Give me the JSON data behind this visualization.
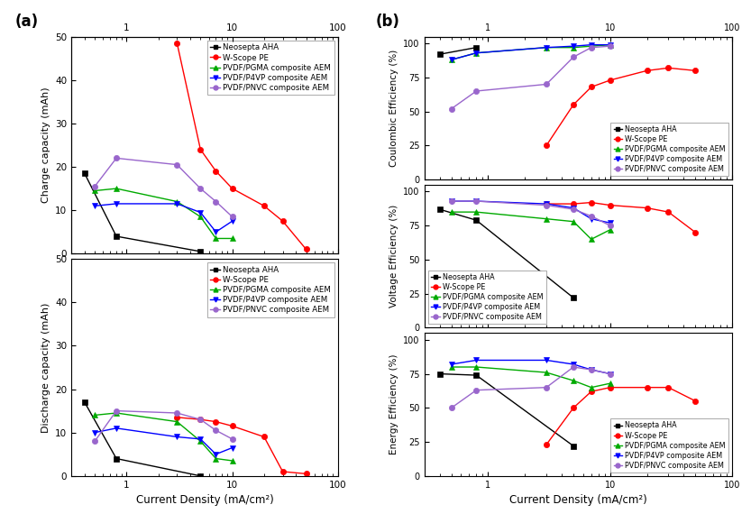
{
  "series_names": [
    "Neosepta AHA",
    "W-Scope PE",
    "PVDF/PGMA composite AEM",
    "PVDF/P4VP composite AEM",
    "PVDF/PNVC composite AEM"
  ],
  "charge_x": {
    "Neosepta AHA": [
      0.4,
      0.8,
      5.0
    ],
    "W-Scope PE": [
      3.0,
      5.0,
      7.0,
      10.0,
      20.0,
      30.0,
      50.0
    ],
    "PVDF/PGMA composite AEM": [
      0.5,
      0.8,
      3.0,
      5.0,
      7.0,
      10.0
    ],
    "PVDF/P4VP composite AEM": [
      0.5,
      0.8,
      3.0,
      5.0,
      7.0,
      10.0
    ],
    "PVDF/PNVC composite AEM": [
      0.5,
      0.8,
      3.0,
      5.0,
      7.0,
      10.0
    ]
  },
  "charge_y": {
    "Neosepta AHA": [
      18.5,
      4.0,
      0.5
    ],
    "W-Scope PE": [
      48.5,
      24.0,
      19.0,
      15.0,
      11.0,
      7.5,
      1.0
    ],
    "PVDF/PGMA composite AEM": [
      14.5,
      15.0,
      12.0,
      8.5,
      3.5,
      3.5
    ],
    "PVDF/P4VP composite AEM": [
      11.0,
      11.5,
      11.5,
      9.5,
      5.0,
      7.5
    ],
    "PVDF/PNVC composite AEM": [
      15.5,
      22.0,
      20.5,
      15.0,
      12.0,
      8.5
    ]
  },
  "discharge_x": {
    "Neosepta AHA": [
      0.4,
      0.8,
      5.0
    ],
    "W-Scope PE": [
      3.0,
      5.0,
      7.0,
      10.0,
      20.0,
      30.0,
      50.0
    ],
    "PVDF/PGMA composite AEM": [
      0.5,
      0.8,
      3.0,
      5.0,
      7.0,
      10.0
    ],
    "PVDF/P4VP composite AEM": [
      0.5,
      0.8,
      3.0,
      5.0,
      7.0,
      10.0
    ],
    "PVDF/PNVC composite AEM": [
      0.5,
      0.8,
      3.0,
      5.0,
      7.0,
      10.0
    ]
  },
  "discharge_y": {
    "Neosepta AHA": [
      17.0,
      4.0,
      0.0
    ],
    "W-Scope PE": [
      13.5,
      13.0,
      12.5,
      11.5,
      9.0,
      1.0,
      0.5
    ],
    "PVDF/PGMA composite AEM": [
      14.0,
      14.5,
      12.5,
      8.0,
      4.0,
      3.5
    ],
    "PVDF/P4VP composite AEM": [
      10.0,
      11.0,
      9.0,
      8.5,
      5.0,
      6.5
    ],
    "PVDF/PNVC composite AEM": [
      8.0,
      15.0,
      14.5,
      13.0,
      10.5,
      8.5
    ]
  },
  "coulombic_x": {
    "Neosepta AHA": [
      0.4,
      0.8
    ],
    "W-Scope PE": [
      3.0,
      5.0,
      7.0,
      10.0,
      20.0,
      30.0,
      50.0
    ],
    "PVDF/PGMA composite AEM": [
      0.5,
      0.8,
      3.0,
      5.0,
      7.0,
      10.0
    ],
    "PVDF/P4VP composite AEM": [
      0.5,
      0.8,
      3.0,
      5.0,
      7.0,
      10.0
    ],
    "PVDF/PNVC composite AEM": [
      0.5,
      0.8,
      3.0,
      5.0,
      7.0,
      10.0
    ]
  },
  "coulombic_y": {
    "Neosepta AHA": [
      92.0,
      97.0
    ],
    "W-Scope PE": [
      25.0,
      55.0,
      68.0,
      73.0,
      80.0,
      82.0,
      80.0
    ],
    "PVDF/PGMA composite AEM": [
      88.0,
      93.0,
      97.0,
      97.0,
      98.0,
      99.0
    ],
    "PVDF/P4VP composite AEM": [
      88.0,
      93.0,
      97.0,
      98.0,
      99.0,
      99.0
    ],
    "PVDF/PNVC composite AEM": [
      52.0,
      65.0,
      70.0,
      90.0,
      97.0,
      98.0
    ]
  },
  "voltage_x": {
    "Neosepta AHA": [
      0.4,
      0.8,
      5.0
    ],
    "W-Scope PE": [
      3.0,
      5.0,
      7.0,
      10.0,
      20.0,
      30.0,
      50.0
    ],
    "PVDF/PGMA composite AEM": [
      0.5,
      0.8,
      3.0,
      5.0,
      7.0,
      10.0
    ],
    "PVDF/P4VP composite AEM": [
      0.5,
      0.8,
      3.0,
      5.0,
      7.0,
      10.0
    ],
    "PVDF/PNVC composite AEM": [
      0.5,
      0.8,
      3.0,
      5.0,
      7.0,
      10.0
    ]
  },
  "voltage_y": {
    "Neosepta AHA": [
      87.0,
      79.0,
      22.0
    ],
    "W-Scope PE": [
      91.0,
      91.0,
      92.0,
      90.0,
      88.0,
      85.0,
      70.0
    ],
    "PVDF/PGMA composite AEM": [
      85.0,
      85.0,
      80.0,
      78.0,
      65.0,
      72.0
    ],
    "PVDF/P4VP composite AEM": [
      93.0,
      93.0,
      91.0,
      88.0,
      80.0,
      77.0
    ],
    "PVDF/PNVC composite AEM": [
      93.0,
      93.0,
      90.0,
      87.0,
      82.0,
      75.0
    ]
  },
  "energy_x": {
    "Neosepta AHA": [
      0.4,
      0.8,
      5.0
    ],
    "W-Scope PE": [
      3.0,
      5.0,
      7.0,
      10.0,
      20.0,
      30.0,
      50.0
    ],
    "PVDF/PGMA composite AEM": [
      0.5,
      0.8,
      3.0,
      5.0,
      7.0,
      10.0
    ],
    "PVDF/P4VP composite AEM": [
      0.5,
      0.8,
      3.0,
      5.0,
      7.0,
      10.0
    ],
    "PVDF/PNVC composite AEM": [
      0.5,
      0.8,
      3.0,
      5.0,
      7.0,
      10.0
    ]
  },
  "energy_y": {
    "Neosepta AHA": [
      75.0,
      74.0,
      22.0
    ],
    "W-Scope PE": [
      23.0,
      50.0,
      62.0,
      65.0,
      65.0,
      65.0,
      55.0
    ],
    "PVDF/PGMA composite AEM": [
      80.0,
      80.0,
      76.0,
      70.0,
      65.0,
      68.0
    ],
    "PVDF/P4VP composite AEM": [
      82.0,
      85.0,
      85.0,
      82.0,
      78.0,
      75.0
    ],
    "PVDF/PNVC composite AEM": [
      50.0,
      63.0,
      65.0,
      80.0,
      78.0,
      75.0
    ]
  },
  "bg_color": "#ffffff",
  "colors_map": {
    "Neosepta AHA": "#000000",
    "W-Scope PE": "#ff0000",
    "PVDF/PGMA composite AEM": "#00aa00",
    "PVDF/P4VP composite AEM": "#0000ff",
    "PVDF/PNVC composite AEM": "#9966cc"
  },
  "markers_map": {
    "Neosepta AHA": "s",
    "W-Scope PE": "o",
    "PVDF/PGMA composite AEM": "^",
    "PVDF/P4VP composite AEM": "v",
    "PVDF/PNVC composite AEM": "o"
  }
}
